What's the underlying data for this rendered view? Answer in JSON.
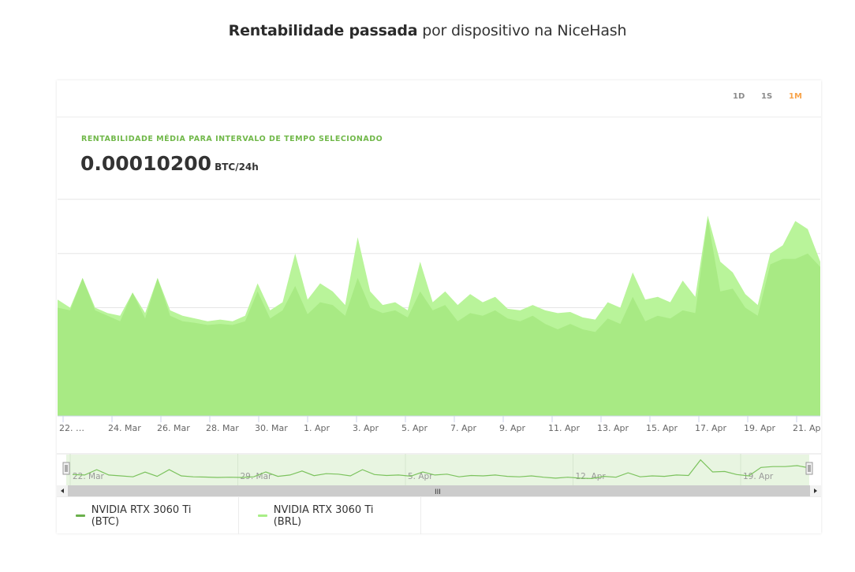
{
  "page": {
    "title_bold": "Rentabilidade passada",
    "title_rest": " por dispositivo na NiceHash"
  },
  "range_selector": {
    "buttons": [
      {
        "label": "1D",
        "active": false
      },
      {
        "label": "1S",
        "active": false
      },
      {
        "label": "1M",
        "active": true
      }
    ],
    "active_color": "#f7a34a"
  },
  "stat": {
    "label": "RENTABILIDADE MÉDIA PARA INTERVALO DE TEMPO SELECIONADO",
    "value": "0.00010200",
    "unit": "BTC/24h"
  },
  "legend": [
    {
      "label": "NVIDIA RTX 3060 Ti (BTC)",
      "color": "#6ab04c"
    },
    {
      "label": "NVIDIA RTX 3060 Ti (BRL)",
      "color": "#a8ee86"
    }
  ],
  "navigator": {
    "labels": [
      "22. Mar",
      "29. Mar",
      "5. Apr",
      "12. Apr",
      "19. Apr"
    ],
    "scrollbar_grip": "III"
  },
  "chart_data": {
    "type": "area",
    "title": "Rentabilidade passada por dispositivo na NiceHash",
    "xlabel": "",
    "ylabel": "",
    "grid": true,
    "y_axis_labels_visible": false,
    "ylim": [
      0,
      4
    ],
    "legend_position": "bottom",
    "x_tick_labels": [
      "22. …",
      "24. Mar",
      "26. Mar",
      "28. Mar",
      "30. Mar",
      "1. Apr",
      "3. Apr",
      "5. Apr",
      "7. Apr",
      "9. Apr",
      "11. Apr",
      "13. Apr",
      "15. Apr",
      "17. Apr",
      "19. Apr",
      "21. Apr"
    ],
    "x": [
      "22 Mar",
      "22.5 Mar",
      "23 Mar",
      "23.5 Mar",
      "24 Mar",
      "24.5 Mar",
      "25 Mar",
      "25.5 Mar",
      "26 Mar",
      "26.5 Mar",
      "27 Mar",
      "27.5 Mar",
      "28 Mar",
      "28.5 Mar",
      "29 Mar",
      "29.5 Mar",
      "30 Mar",
      "30.5 Mar",
      "31 Mar",
      "31.5 Mar",
      "1 Apr",
      "1.5 Apr",
      "2 Apr",
      "2.5 Apr",
      "3 Apr",
      "3.5 Apr",
      "4 Apr",
      "4.5 Apr",
      "5 Apr",
      "5.5 Apr",
      "6 Apr",
      "6.5 Apr",
      "7 Apr",
      "7.5 Apr",
      "8 Apr",
      "8.5 Apr",
      "9 Apr",
      "9.5 Apr",
      "10 Apr",
      "10.5 Apr",
      "11 Apr",
      "11.5 Apr",
      "12 Apr",
      "12.5 Apr",
      "13 Apr",
      "13.5 Apr",
      "14 Apr",
      "14.5 Apr",
      "15 Apr",
      "15.5 Apr",
      "16 Apr",
      "16.5 Apr",
      "17 Apr",
      "17.5 Apr",
      "18 Apr",
      "18.5 Apr",
      "19 Apr",
      "19.5 Apr",
      "20 Apr",
      "20.5 Apr",
      "21 Apr",
      "21.5 Apr"
    ],
    "series": [
      {
        "name": "NVIDIA RTX 3060 Ti (BTC)",
        "color": "#6ab04c",
        "fill": "#a8ea84",
        "values": [
          2.0,
          1.95,
          2.55,
          1.95,
          1.85,
          1.75,
          2.28,
          1.8,
          2.55,
          1.85,
          1.75,
          1.72,
          1.68,
          1.7,
          1.68,
          1.75,
          2.3,
          1.8,
          1.95,
          2.4,
          1.88,
          2.1,
          2.05,
          1.85,
          2.55,
          2.0,
          1.9,
          1.95,
          1.82,
          2.3,
          1.95,
          2.05,
          1.75,
          1.9,
          1.85,
          1.95,
          1.8,
          1.75,
          1.85,
          1.7,
          1.6,
          1.7,
          1.6,
          1.55,
          1.8,
          1.7,
          2.2,
          1.75,
          1.85,
          1.8,
          1.95,
          1.9,
          3.65,
          2.3,
          2.35,
          2.0,
          1.85,
          2.8,
          2.9,
          2.9,
          3.0,
          2.75
        ]
      },
      {
        "name": "NVIDIA RTX 3060 Ti (BRL)",
        "color": "#a8ee86",
        "fill": "#b9f49a",
        "values": [
          2.15,
          2.0,
          2.55,
          2.0,
          1.9,
          1.85,
          2.28,
          1.9,
          2.55,
          1.95,
          1.85,
          1.8,
          1.75,
          1.78,
          1.75,
          1.85,
          2.45,
          1.95,
          2.1,
          3.0,
          2.15,
          2.45,
          2.3,
          2.05,
          3.3,
          2.3,
          2.05,
          2.1,
          1.95,
          2.85,
          2.1,
          2.3,
          2.05,
          2.25,
          2.1,
          2.2,
          1.98,
          1.95,
          2.05,
          1.95,
          1.9,
          1.92,
          1.82,
          1.78,
          2.1,
          2.0,
          2.65,
          2.15,
          2.2,
          2.1,
          2.5,
          2.2,
          3.7,
          2.85,
          2.65,
          2.25,
          2.05,
          3.0,
          3.15,
          3.6,
          3.45,
          2.85
        ]
      }
    ]
  }
}
